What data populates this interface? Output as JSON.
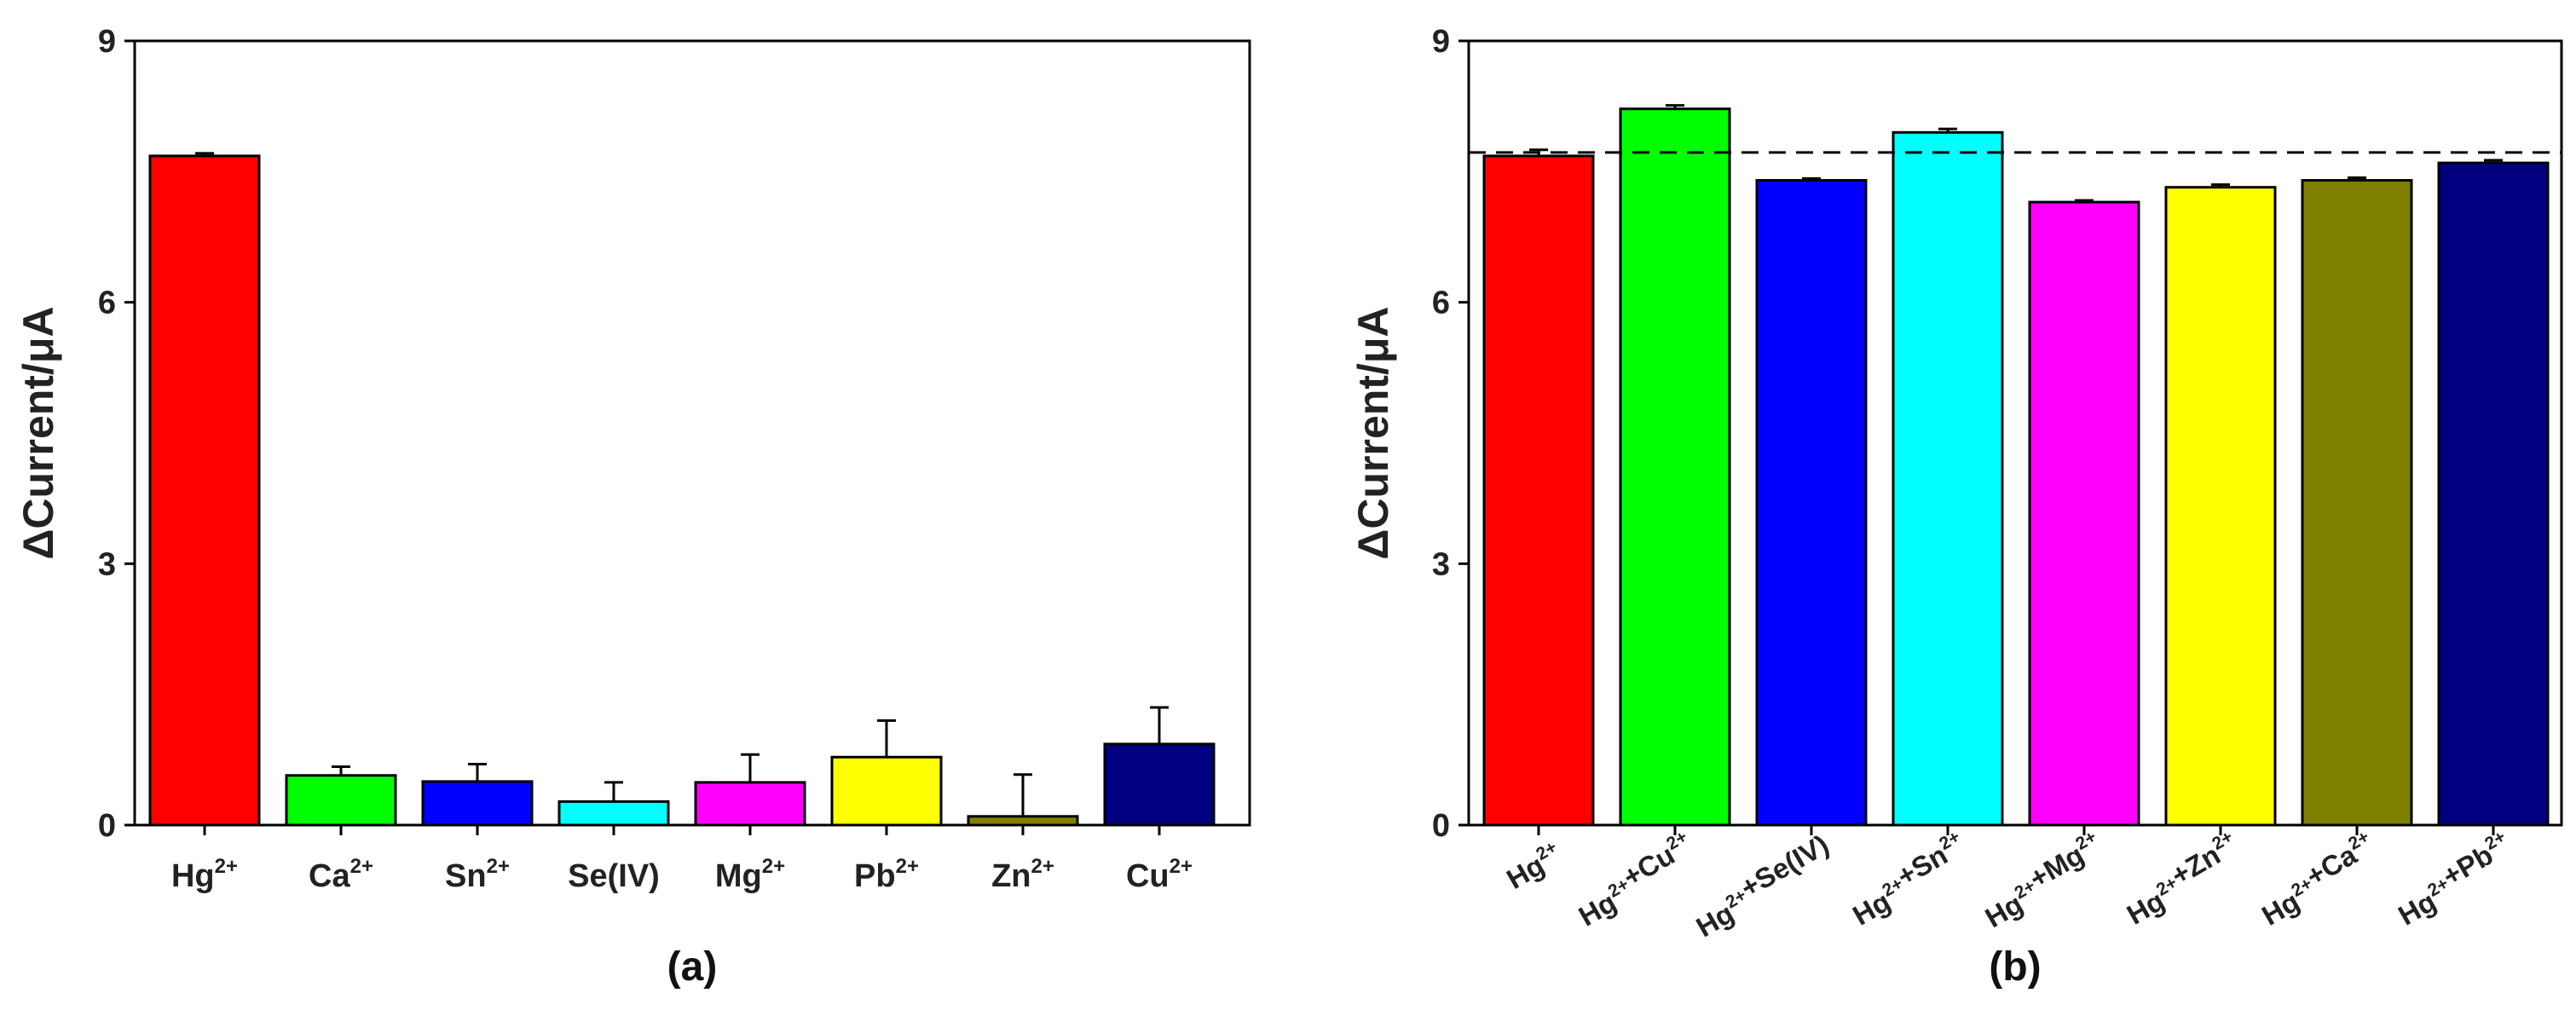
{
  "chart_data": [
    {
      "id": "a",
      "type": "bar",
      "panel_label": "(a)",
      "ylabel": "ΔCurrent/μA",
      "ylim": [
        0,
        9
      ],
      "yticks": [
        "0",
        "3",
        "6",
        "9"
      ],
      "categories": [
        {
          "base": "Hg",
          "sup": "2+"
        },
        {
          "base": "Ca",
          "sup": "2+"
        },
        {
          "base": "Sn",
          "sup": "2+"
        },
        {
          "base": "Se(IV)",
          "sup": ""
        },
        {
          "base": "Mg",
          "sup": "2+"
        },
        {
          "base": "Pb",
          "sup": "2+"
        },
        {
          "base": "Zn",
          "sup": "2+"
        },
        {
          "base": "Cu",
          "sup": "2+"
        }
      ],
      "values": [
        7.68,
        0.57,
        0.5,
        0.27,
        0.49,
        0.78,
        0.1,
        0.93
      ],
      "errors": [
        0.03,
        0.1,
        0.2,
        0.22,
        0.32,
        0.42,
        0.48,
        0.42
      ],
      "colors": [
        "#ff0000",
        "#00ff00",
        "#0000ff",
        "#00ffff",
        "#ff00ff",
        "#ffff00",
        "#808000",
        "#000080"
      ],
      "label_rotation": 0
    },
    {
      "id": "b",
      "type": "bar",
      "panel_label": "(b)",
      "ylabel": "ΔCurrent/μA",
      "ylim": [
        0,
        9
      ],
      "yticks": [
        "0",
        "3",
        "6",
        "9"
      ],
      "categories": [
        {
          "parts": [
            [
              "Hg",
              "2+"
            ]
          ]
        },
        {
          "parts": [
            [
              "Hg",
              "2+"
            ],
            [
              "+Cu",
              "2+"
            ]
          ]
        },
        {
          "parts": [
            [
              "Hg",
              "2+"
            ],
            [
              "+Se(IV)",
              ""
            ]
          ]
        },
        {
          "parts": [
            [
              "Hg",
              "2+"
            ],
            [
              "+Sn",
              "2+"
            ]
          ]
        },
        {
          "parts": [
            [
              "Hg",
              "2+"
            ],
            [
              "+Mg",
              "2+"
            ]
          ]
        },
        {
          "parts": [
            [
              "Hg",
              "2+"
            ],
            [
              "+Zn",
              "2+"
            ]
          ]
        },
        {
          "parts": [
            [
              "Hg",
              "2+"
            ],
            [
              "+Ca",
              "2+"
            ]
          ]
        },
        {
          "parts": [
            [
              "Hg",
              "2+"
            ],
            [
              "+Pb",
              "2+"
            ]
          ]
        }
      ],
      "values": [
        7.68,
        8.22,
        7.4,
        7.95,
        7.15,
        7.32,
        7.4,
        7.6
      ],
      "errors": [
        0.07,
        0.04,
        0.02,
        0.04,
        0.02,
        0.03,
        0.03,
        0.03
      ],
      "colors": [
        "#ff0000",
        "#00ff00",
        "#0000ff",
        "#00ffff",
        "#ff00ff",
        "#ffff00",
        "#808000",
        "#000080"
      ],
      "reference_line": 7.72,
      "label_rotation": -30
    }
  ]
}
